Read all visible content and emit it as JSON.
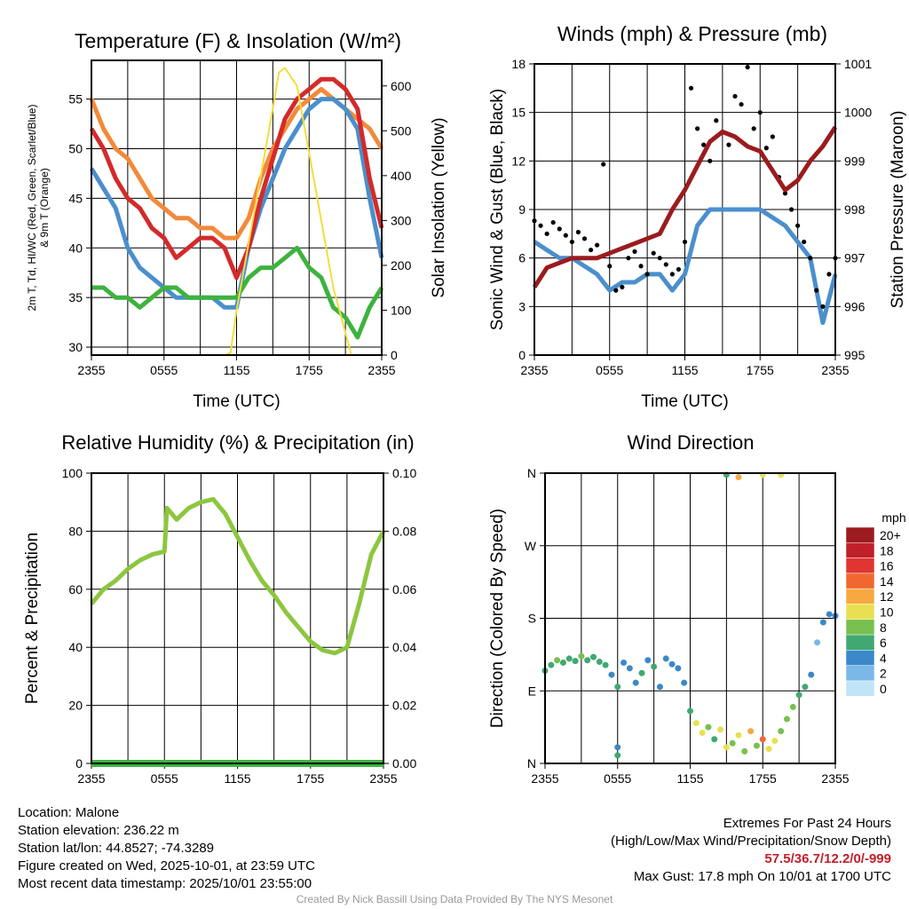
{
  "chart_data": [
    {
      "id": "temp",
      "type": "line",
      "title": "Temperature (F) & Insolation (W/m²)",
      "xlabel": "Time (UTC)",
      "ylabel": "2m T, Td, HI/WC (Red, Green, Scarlet/Blue) & 9m T (Orange)",
      "ylabel2": "Solar Insolation (Yellow)",
      "xticks": [
        "2355",
        "0555",
        "1155",
        "1755",
        "2355"
      ],
      "ylim": [
        29.2,
        58.9
      ],
      "yticks": [
        30,
        35,
        40,
        45,
        50,
        55
      ],
      "y2lim": [
        0,
        657
      ],
      "y2ticks": [
        0,
        100,
        200,
        300,
        400,
        500,
        600
      ],
      "series": [
        {
          "name": "9m T",
          "color": "#f28a3a",
          "axis": "left",
          "x": [
            0,
            1,
            2,
            3,
            4,
            5,
            6,
            7,
            8,
            9,
            10,
            11,
            12,
            13,
            14,
            15,
            16,
            17,
            18,
            19,
            20,
            21,
            22,
            23,
            24
          ],
          "y": [
            55,
            52,
            50,
            49,
            47,
            45,
            44,
            43,
            43,
            42,
            42,
            41,
            41,
            43,
            47,
            50,
            52,
            54,
            55,
            56,
            55,
            54,
            53,
            52,
            50
          ]
        },
        {
          "name": "HI/WC",
          "color": "#4a8fcc",
          "axis": "left",
          "x": [
            0,
            1,
            2,
            3,
            4,
            5,
            6,
            7,
            8,
            9,
            10,
            11,
            12,
            13,
            14,
            15,
            16,
            17,
            18,
            19,
            20,
            21,
            22,
            23,
            24
          ],
          "y": [
            48,
            46,
            44,
            40,
            38,
            37,
            36,
            35,
            35,
            35,
            35,
            34,
            34,
            40,
            44,
            47,
            50,
            52,
            54,
            55,
            55,
            54,
            52,
            45,
            39
          ]
        },
        {
          "name": "2m T",
          "color": "#d42a2a",
          "axis": "left",
          "x": [
            0,
            1,
            2,
            3,
            4,
            5,
            6,
            7,
            8,
            9,
            10,
            11,
            12,
            13,
            14,
            15,
            16,
            17,
            18,
            19,
            20,
            21,
            22,
            23,
            24
          ],
          "y": [
            52,
            50,
            47,
            45,
            44,
            42,
            41,
            39,
            40,
            41,
            41,
            40,
            37,
            40,
            45,
            49,
            53,
            55,
            56,
            57,
            57,
            56,
            54,
            47,
            42
          ]
        },
        {
          "name": "Td",
          "color": "#3db33d",
          "axis": "left",
          "x": [
            0,
            1,
            2,
            3,
            4,
            5,
            6,
            7,
            8,
            9,
            10,
            11,
            12,
            13,
            14,
            15,
            16,
            17,
            18,
            19,
            20,
            21,
            22,
            23,
            24
          ],
          "y": [
            36,
            36,
            35,
            35,
            34,
            35,
            36,
            36,
            35,
            35,
            35,
            35,
            35,
            37,
            38,
            38,
            39,
            40,
            38,
            37,
            34,
            33,
            31,
            34,
            36
          ]
        },
        {
          "name": "Solar Insolation",
          "color": "#f5dc40",
          "axis": "right",
          "thin": true,
          "x": [
            0,
            11,
            11.5,
            12,
            13,
            14,
            15,
            15.5,
            16,
            17,
            18,
            19,
            20,
            21,
            21.5,
            24
          ],
          "y": [
            0,
            0,
            5,
            100,
            250,
            400,
            550,
            630,
            640,
            600,
            450,
            300,
            150,
            50,
            0,
            0
          ]
        }
      ]
    },
    {
      "id": "wind",
      "type": "line",
      "title": "Winds (mph) & Pressure (mb)",
      "xlabel": "Time (UTC)",
      "ylabel": "Sonic Wind & Gust (Blue, Black)",
      "ylabel2": "Station Pressure (Maroon)",
      "xticks": [
        "2355",
        "0555",
        "1155",
        "1755",
        "2355"
      ],
      "ylim": [
        0,
        18
      ],
      "yticks": [
        0,
        3,
        6,
        9,
        12,
        15,
        18
      ],
      "y2lim": [
        995,
        1001
      ],
      "y2ticks": [
        995,
        996,
        997,
        998,
        999,
        1000,
        1001
      ],
      "series": [
        {
          "name": "Sonic Wind",
          "color": "#4a8fcc",
          "axis": "left",
          "x": [
            0,
            1,
            2,
            3,
            4,
            5,
            6,
            7,
            8,
            9,
            10,
            11,
            12,
            13,
            14,
            15,
            16,
            17,
            18,
            19,
            20,
            21,
            22,
            23,
            24
          ],
          "y": [
            7,
            6.5,
            6,
            6,
            5.5,
            5,
            4,
            4.5,
            4.5,
            5,
            5,
            4,
            5,
            8,
            9,
            9,
            9,
            9,
            9,
            8.5,
            8,
            7,
            6,
            2,
            5
          ]
        },
        {
          "name": "Gust",
          "color": "#000000",
          "axis": "left",
          "dots": true,
          "x": [
            0,
            0.5,
            1,
            1.5,
            2,
            2.5,
            3,
            3.5,
            4,
            4.5,
            5,
            5.5,
            6,
            6.5,
            7,
            7.5,
            8,
            8.5,
            9,
            9.5,
            10,
            10.5,
            11,
            11.5,
            12,
            12.5,
            13,
            13.5,
            14,
            14.5,
            15,
            15.5,
            16,
            16.5,
            17,
            17.5,
            18,
            18.5,
            19,
            19.5,
            20,
            20.5,
            21,
            21.5,
            22,
            22.5,
            23,
            23.5,
            24
          ],
          "y": [
            8.3,
            8,
            7.5,
            8.2,
            7.8,
            7.4,
            7,
            7.6,
            7.2,
            6.5,
            6.8,
            11.8,
            5.5,
            4,
            4.2,
            6,
            6.4,
            5.5,
            5,
            6.3,
            6,
            5.6,
            5,
            5.3,
            7,
            16.5,
            14,
            13,
            12,
            14.5,
            13.8,
            13,
            16,
            15.5,
            17.8,
            14,
            15,
            12.8,
            13.5,
            11,
            10,
            9,
            8,
            7,
            6,
            4,
            3,
            5,
            6
          ]
        },
        {
          "name": "Pressure",
          "color": "#9b1b1e",
          "axis": "right",
          "x": [
            0,
            1,
            2,
            3,
            4,
            5,
            6,
            7,
            8,
            9,
            10,
            11,
            12,
            13,
            14,
            15,
            16,
            17,
            18,
            19,
            20,
            21,
            22,
            23,
            24
          ],
          "y": [
            996.4,
            996.8,
            996.9,
            997,
            997,
            997,
            997.1,
            997.2,
            997.3,
            997.4,
            997.5,
            998,
            998.4,
            998.9,
            999.4,
            999.6,
            999.5,
            999.3,
            999.2,
            998.8,
            998.4,
            998.6,
            999,
            999.3,
            999.7
          ]
        }
      ]
    },
    {
      "id": "rh",
      "type": "line",
      "title": "Relative Humidity (%) & Precipitation (in)",
      "ylabel": "Percent & Precipitation",
      "xticks": [
        "2355",
        "0555",
        "1155",
        "1755",
        "2355"
      ],
      "ylim": [
        0,
        100
      ],
      "yticks": [
        0,
        20,
        40,
        60,
        80,
        100
      ],
      "y2lim": [
        0,
        0.1
      ],
      "y2ticks": [
        "0.00",
        "0.02",
        "0.04",
        "0.06",
        "0.08",
        "0.10"
      ],
      "series": [
        {
          "name": "Relative Humidity",
          "color": "#8cc63f",
          "axis": "left",
          "x": [
            0,
            1,
            2,
            3,
            4,
            5,
            6,
            6.2,
            7,
            8,
            9,
            10,
            11,
            12,
            13,
            14,
            15,
            16,
            17,
            18,
            19,
            20,
            21,
            22,
            23,
            24
          ],
          "y": [
            55,
            60,
            63,
            67,
            70,
            72,
            73,
            88,
            84,
            88,
            90,
            91,
            86,
            78,
            70,
            63,
            58,
            52,
            47,
            42,
            39,
            38,
            40,
            55,
            72,
            80
          ]
        },
        {
          "name": "Precipitation",
          "color": "#3db33d",
          "axis": "right",
          "thick": true,
          "x": [
            0,
            24
          ],
          "y": [
            0,
            0
          ]
        }
      ]
    },
    {
      "id": "dir",
      "type": "scatter",
      "title": "Wind Direction",
      "ylabel": "Direction (Colored By Speed)",
      "xticks": [
        "2355",
        "0555",
        "1155",
        "1755",
        "2355"
      ],
      "ylim": [
        0,
        360
      ],
      "yticklabels": [
        "N",
        "E",
        "S",
        "W",
        "N"
      ],
      "legend_title": "mph",
      "legend": [
        {
          "label": "20+",
          "color": "#9b1b1e"
        },
        {
          "label": "18",
          "color": "#c0202a"
        },
        {
          "label": "16",
          "color": "#e03530"
        },
        {
          "label": "14",
          "color": "#f06830"
        },
        {
          "label": "12",
          "color": "#f7a840"
        },
        {
          "label": "10",
          "color": "#e8e050"
        },
        {
          "label": "8",
          "color": "#78c050"
        },
        {
          "label": "6",
          "color": "#40a870"
        },
        {
          "label": "4",
          "color": "#3a88c8"
        },
        {
          "label": "2",
          "color": "#7ab8e8"
        },
        {
          "label": "0",
          "color": "#c0e4f8"
        }
      ],
      "points": [
        [
          0,
          115,
          6
        ],
        [
          0.5,
          122,
          6
        ],
        [
          1,
          128,
          7
        ],
        [
          1.5,
          125,
          5
        ],
        [
          2,
          130,
          6
        ],
        [
          2.5,
          127,
          6
        ],
        [
          3,
          133,
          7
        ],
        [
          3.5,
          128,
          6
        ],
        [
          4,
          132,
          6
        ],
        [
          4.5,
          126,
          5
        ],
        [
          5,
          122,
          5
        ],
        [
          5.5,
          110,
          4
        ],
        [
          6,
          95,
          5
        ],
        [
          6,
          20,
          4
        ],
        [
          6,
          10,
          5
        ],
        [
          6.5,
          125,
          4
        ],
        [
          7,
          118,
          3
        ],
        [
          7.5,
          100,
          4
        ],
        [
          8,
          112,
          5
        ],
        [
          8.5,
          128,
          4
        ],
        [
          9,
          120,
          5
        ],
        [
          9.5,
          95,
          3
        ],
        [
          10,
          130,
          4
        ],
        [
          10.5,
          123,
          3
        ],
        [
          11,
          118,
          4
        ],
        [
          11.5,
          100,
          3
        ],
        [
          12,
          65,
          5
        ],
        [
          12.5,
          50,
          9
        ],
        [
          13,
          38,
          10
        ],
        [
          13.5,
          45,
          8
        ],
        [
          14,
          30,
          6
        ],
        [
          14.5,
          42,
          9
        ],
        [
          15,
          20,
          10
        ],
        [
          15,
          358,
          6
        ],
        [
          15.5,
          25,
          8
        ],
        [
          16,
          35,
          9
        ],
        [
          16,
          355,
          12
        ],
        [
          16.5,
          15,
          7
        ],
        [
          17,
          40,
          11
        ],
        [
          17.5,
          22,
          8
        ],
        [
          18,
          30,
          13
        ],
        [
          18,
          358,
          10
        ],
        [
          18.5,
          18,
          9
        ],
        [
          19,
          28,
          10
        ],
        [
          19.5,
          40,
          8
        ],
        [
          19.5,
          358,
          10
        ],
        [
          20,
          55,
          7
        ],
        [
          20.5,
          70,
          8
        ],
        [
          21,
          85,
          6
        ],
        [
          21.5,
          95,
          5
        ],
        [
          22,
          110,
          4
        ],
        [
          22.5,
          150,
          2
        ],
        [
          23,
          175,
          3
        ],
        [
          23.5,
          185,
          3
        ],
        [
          24,
          183,
          4
        ]
      ]
    }
  ],
  "info": {
    "location": "Location: Malone",
    "elevation": "Station elevation: 236.22 m",
    "latlon": "Station lat/lon: 44.8527; -74.3289",
    "created": "Figure created on Wed, 2025-10-01, at 23:59 UTC",
    "recent": "Most recent data timestamp: 2025/10/01 23:55:00"
  },
  "extremes": {
    "title": "Extremes For Past 24 Hours",
    "subtitle": "(High/Low/Max Wind/Precipitation/Snow Depth)",
    "values": "57.5/36.7/12.2/0/-999",
    "gust": "Max Gust: 17.8 mph On 10/01 at 1700 UTC"
  },
  "credit": "Created By Nick Bassill Using Data Provided By The NYS Mesonet"
}
